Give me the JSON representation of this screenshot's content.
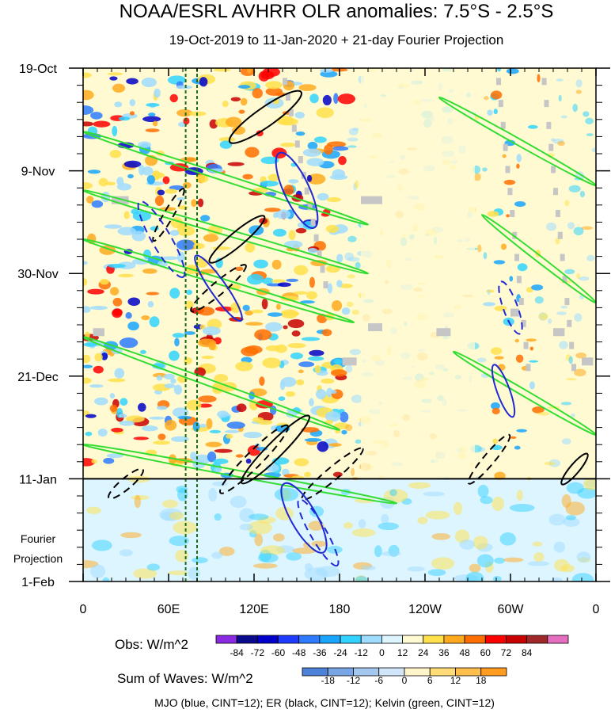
{
  "chart_data": {
    "type": "heatmap",
    "title": "NOAA/ESRL AVHRR OLR anomalies: 7.5°S - 2.5°S",
    "subtitle": "19-Oct-2019 to 11-Jan-2020 + 21-day Fourier Projection",
    "x_axis": {
      "ticks": [
        "0",
        "60E",
        "120E",
        "180",
        "120W",
        "60W",
        "0"
      ],
      "tick_values_deg_east": [
        0,
        60,
        120,
        180,
        240,
        300,
        360
      ],
      "range": [
        0,
        360
      ]
    },
    "y_axis": {
      "ticks": [
        "19-Oct",
        "9-Nov",
        "30-Nov",
        "21-Dec",
        "11-Jan",
        "1-Feb"
      ],
      "tick_day_offsets": [
        0,
        21,
        42,
        63,
        84,
        105
      ],
      "range_days": [
        0,
        105
      ],
      "projection_label_line1": "Fourier",
      "projection_label_line2": "Projection",
      "observation_end_day": 84
    },
    "vertical_reference_lines_deg_east": [
      72,
      80
    ],
    "obs_colorbar": {
      "label": "Obs: W/m^2",
      "levels": [
        -84,
        -72,
        -60,
        -48,
        -36,
        -24,
        -12,
        0,
        12,
        24,
        36,
        48,
        60,
        72,
        84
      ],
      "labels": [
        "-84",
        "-72",
        "-60",
        "-48",
        "-36",
        "-24",
        "-12",
        "0",
        "12",
        "24",
        "36",
        "48",
        "60",
        "72",
        "84"
      ],
      "colors": [
        "#8a2be2",
        "#0a0a8c",
        "#0000c8",
        "#1e3cff",
        "#2e7bff",
        "#19a5ff",
        "#32d2ff",
        "#a0dcff",
        "#dcf5ff",
        "#fffad2",
        "#ffe14b",
        "#ffaa1e",
        "#ff6e00",
        "#ff0000",
        "#c80000",
        "#a02828",
        "#e66ebe"
      ]
    },
    "waves_colorbar": {
      "label": "Sum of Waves: W/m^2",
      "levels": [
        -18,
        -12,
        -6,
        0,
        6,
        12,
        18
      ],
      "labels": [
        "-18",
        "-12",
        "-6",
        "0",
        "6",
        "12",
        "18"
      ],
      "colors": [
        "#4b82d7",
        "#78a5e6",
        "#a5c8f0",
        "#d2e6fa",
        "#fff5c8",
        "#ffdc78",
        "#ffbe4b",
        "#ff9b1e"
      ]
    },
    "footer": "MJO (blue, CINT=12); ER (black, CINT=12); Kelvin (green, CINT=12)",
    "wave_contour_colors": {
      "mjo": "#1f2ad2",
      "er": "#000000",
      "kelvin": "#33dd33"
    },
    "missing_color": "#c6c6c6"
  }
}
